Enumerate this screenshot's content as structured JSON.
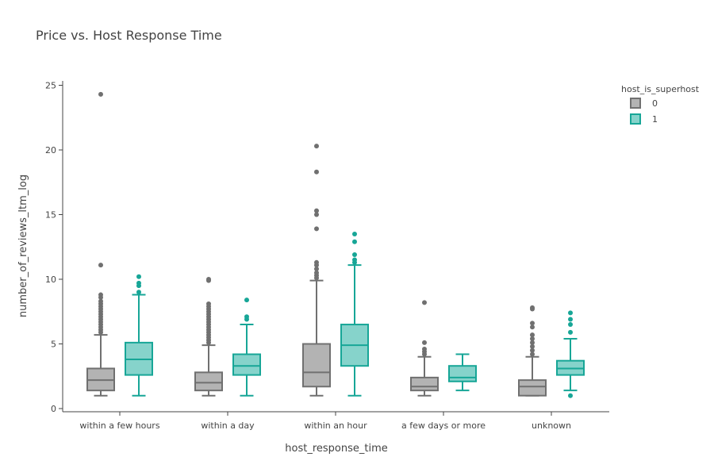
{
  "chart_data": {
    "type": "box",
    "title": "Price vs. Host Response Time",
    "xlabel": "host_response_time",
    "ylabel": "number_of_reviews_ltm_log",
    "categories": [
      "within a few hours",
      "within a day",
      "within an hour",
      "a few days or more",
      "unknown"
    ],
    "ylim": [
      0,
      25.5
    ],
    "yticks": [
      0,
      5,
      10,
      15,
      20,
      25
    ],
    "grid": false,
    "legend": {
      "title": "host_is_superhost",
      "placement": "top-right",
      "entries": [
        "0",
        "1"
      ]
    },
    "series": [
      {
        "name": "0",
        "color": "#707070",
        "fill": "#b3b3b3",
        "boxes": [
          {
            "min": 1.0,
            "q1": 1.4,
            "median": 2.2,
            "q3": 3.1,
            "max": 5.7,
            "outliers": [
              5.9,
              6.1,
              6.3,
              6.5,
              6.7,
              6.9,
              7.1,
              7.3,
              7.5,
              7.7,
              7.9,
              8.1,
              8.3,
              8.6,
              8.8,
              11.1,
              24.3
            ]
          },
          {
            "min": 1.0,
            "q1": 1.4,
            "median": 2.0,
            "q3": 2.8,
            "max": 4.9,
            "outliers": [
              5.1,
              5.3,
              5.5,
              5.7,
              5.9,
              6.1,
              6.3,
              6.5,
              6.7,
              6.9,
              7.1,
              7.3,
              7.5,
              7.7,
              7.9,
              8.1,
              9.9,
              10.0
            ]
          },
          {
            "min": 1.0,
            "q1": 1.7,
            "median": 2.8,
            "q3": 5.0,
            "max": 9.9,
            "outliers": [
              10.1,
              10.3,
              10.5,
              10.8,
              11.1,
              11.3,
              13.9,
              15.0,
              15.3,
              18.3,
              20.3
            ]
          },
          {
            "min": 1.0,
            "q1": 1.4,
            "median": 1.7,
            "q3": 2.4,
            "max": 4.0,
            "outliers": [
              4.2,
              4.4,
              4.6,
              5.1,
              8.2
            ]
          },
          {
            "min": 1.0,
            "q1": 1.0,
            "median": 1.7,
            "q3": 2.2,
            "max": 4.0,
            "outliers": [
              4.2,
              4.5,
              4.8,
              5.1,
              5.4,
              5.7,
              6.3,
              6.6,
              7.7,
              7.8
            ]
          }
        ]
      },
      {
        "name": "1",
        "color": "#17a697",
        "fill": "#86d3cb",
        "boxes": [
          {
            "min": 1.0,
            "q1": 2.6,
            "median": 3.8,
            "q3": 5.1,
            "max": 8.8,
            "outliers": [
              9.0,
              9.5,
              9.7,
              10.2
            ]
          },
          {
            "min": 1.0,
            "q1": 2.6,
            "median": 3.3,
            "q3": 4.2,
            "max": 6.5,
            "outliers": [
              6.9,
              7.1,
              8.4
            ]
          },
          {
            "min": 1.0,
            "q1": 3.3,
            "median": 4.9,
            "q3": 6.5,
            "max": 11.1,
            "outliers": [
              11.3,
              11.5,
              11.9,
              12.9,
              13.5
            ]
          },
          {
            "min": 1.4,
            "q1": 2.1,
            "median": 2.4,
            "q3": 3.3,
            "max": 4.2,
            "outliers": []
          },
          {
            "min": 1.4,
            "q1": 2.6,
            "median": 3.1,
            "q3": 3.7,
            "max": 5.4,
            "outliers": [
              1.0,
              5.9,
              6.5,
              6.9,
              7.4
            ]
          }
        ]
      }
    ]
  }
}
